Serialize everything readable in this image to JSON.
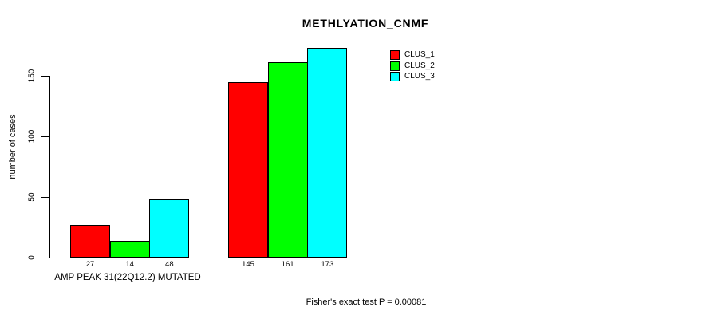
{
  "chart_data": {
    "type": "bar",
    "title": "METHLYATION_CNMF",
    "ylabel": "number of cases",
    "xlabel": "",
    "yticks": [
      0,
      50,
      100,
      150
    ],
    "ylim": [
      0,
      173
    ],
    "grid": false,
    "legend_position": "top-right",
    "categories": [
      "AMP PEAK 31(22Q12.2) MUTATED",
      ""
    ],
    "series": [
      {
        "name": "CLUS_1",
        "color": "#FF0000",
        "values": [
          27,
          145
        ]
      },
      {
        "name": "CLUS_2",
        "color": "#00FF00",
        "values": [
          14,
          161
        ]
      },
      {
        "name": "CLUS_3",
        "color": "#00FFFF",
        "values": [
          48,
          173
        ]
      }
    ],
    "bar_value_labels_shown": true,
    "annotation": "Fisher's exact test P = 0.00081"
  }
}
